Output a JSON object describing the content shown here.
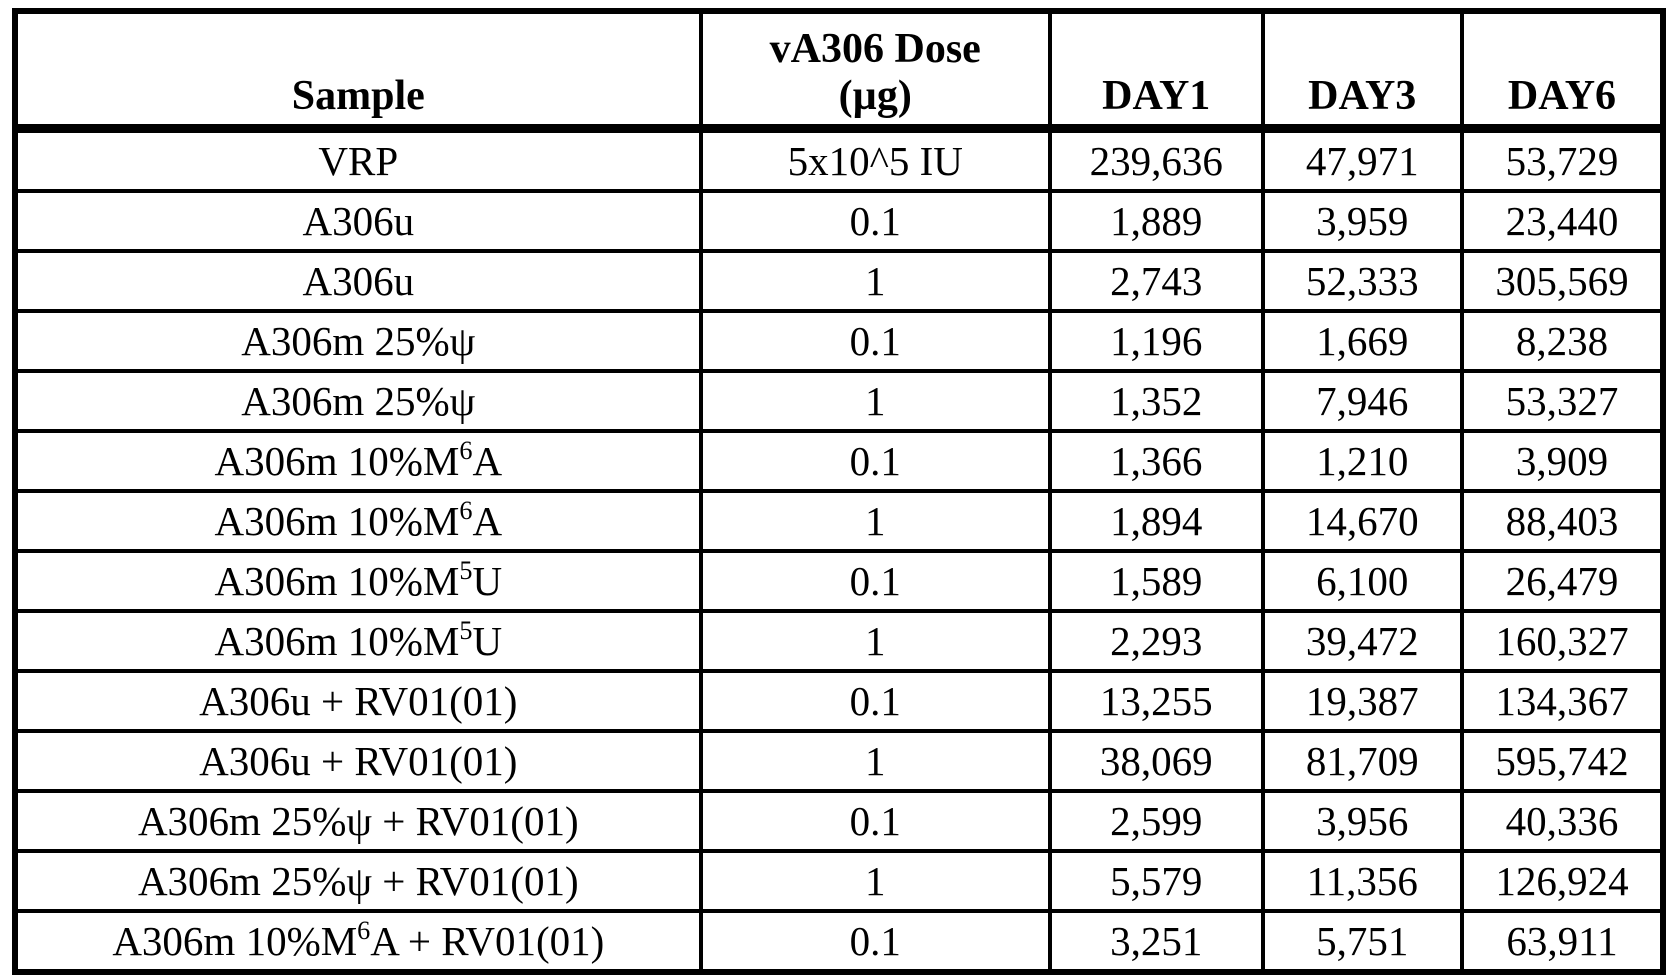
{
  "table": {
    "headers": {
      "sample": "Sample",
      "dose": "vA306 Dose\n(µg)",
      "day1": "DAY1",
      "day3": "DAY3",
      "day6": "DAY6"
    },
    "rows": [
      {
        "sample": [
          "VRP"
        ],
        "dose": "5x10^5 IU",
        "day1": "239,636",
        "day3": "47,971",
        "day6": "53,729"
      },
      {
        "sample": [
          "A306u"
        ],
        "dose": "0.1",
        "day1": "1,889",
        "day3": "3,959",
        "day6": "23,440"
      },
      {
        "sample": [
          "A306u"
        ],
        "dose": "1",
        "day1": "2,743",
        "day3": "52,333",
        "day6": "305,569"
      },
      {
        "sample": [
          "A306m 25%ψ"
        ],
        "dose": "0.1",
        "day1": "1,196",
        "day3": "1,669",
        "day6": "8,238"
      },
      {
        "sample": [
          "A306m 25%ψ"
        ],
        "dose": "1",
        "day1": "1,352",
        "day3": "7,946",
        "day6": "53,327"
      },
      {
        "sample": [
          "A306m 10%M",
          {
            "sup": "6"
          },
          "A"
        ],
        "dose": "0.1",
        "day1": "1,366",
        "day3": "1,210",
        "day6": "3,909"
      },
      {
        "sample": [
          "A306m 10%M",
          {
            "sup": "6"
          },
          "A"
        ],
        "dose": "1",
        "day1": "1,894",
        "day3": "14,670",
        "day6": "88,403"
      },
      {
        "sample": [
          "A306m 10%M",
          {
            "sup": "5"
          },
          "U"
        ],
        "dose": "0.1",
        "day1": "1,589",
        "day3": "6,100",
        "day6": "26,479"
      },
      {
        "sample": [
          "A306m 10%M",
          {
            "sup": "5"
          },
          "U"
        ],
        "dose": "1",
        "day1": "2,293",
        "day3": "39,472",
        "day6": "160,327"
      },
      {
        "sample": [
          "A306u + RV01(01)"
        ],
        "dose": "0.1",
        "day1": "13,255",
        "day3": "19,387",
        "day6": "134,367"
      },
      {
        "sample": [
          "A306u + RV01(01)"
        ],
        "dose": "1",
        "day1": "38,069",
        "day3": "81,709",
        "day6": "595,742"
      },
      {
        "sample": [
          "A306m 25%ψ + RV01(01)"
        ],
        "dose": "0.1",
        "day1": "2,599",
        "day3": "3,956",
        "day6": "40,336"
      },
      {
        "sample": [
          "A306m 25%ψ + RV01(01)"
        ],
        "dose": "1",
        "day1": "5,579",
        "day3": "11,356",
        "day6": "126,924"
      },
      {
        "sample": [
          "A306m 10%M",
          {
            "sup": "6"
          },
          "A + RV01(01)"
        ],
        "dose": "0.1",
        "day1": "3,251",
        "day3": "5,751",
        "day6": "63,911"
      }
    ],
    "colors": {
      "border": "#000000",
      "background": "#ffffff",
      "text": "#000000"
    }
  }
}
